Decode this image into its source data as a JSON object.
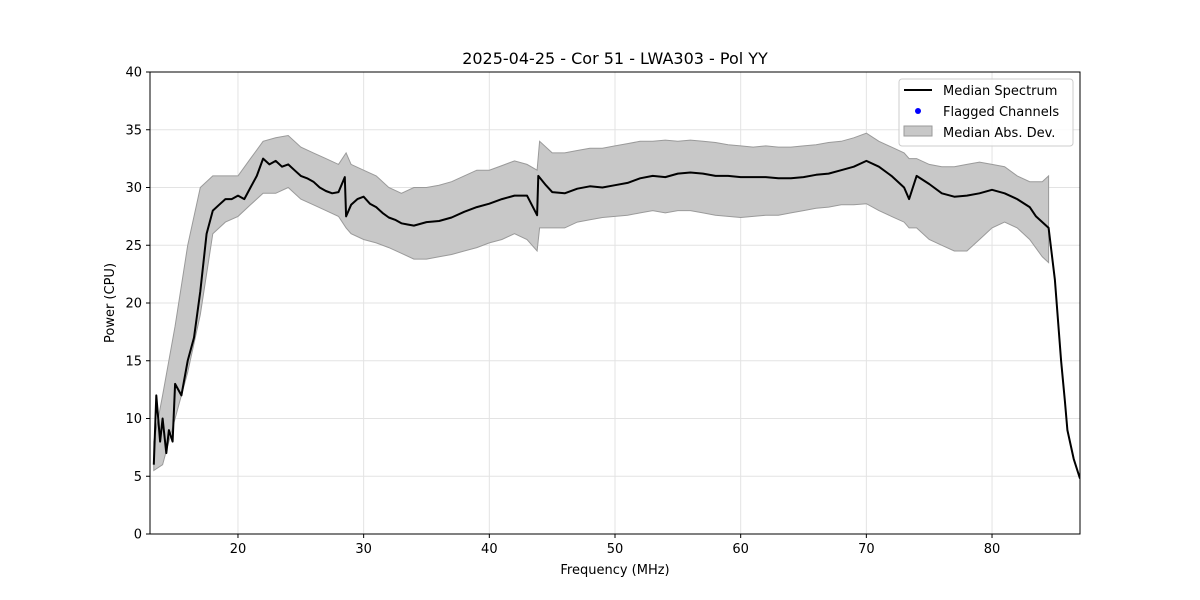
{
  "chart_data": {
    "type": "line",
    "title": "2025-04-25 - Cor 51 - LWA303 - Pol YY",
    "xlabel": "Frequency (MHz)",
    "ylabel": "Power (CPU)",
    "xlim": [
      13,
      87
    ],
    "ylim": [
      0,
      40
    ],
    "xticks": [
      20,
      30,
      40,
      50,
      60,
      70,
      80
    ],
    "yticks": [
      0,
      5,
      10,
      15,
      20,
      25,
      30,
      35,
      40
    ],
    "grid": true,
    "legend_position": "top-right",
    "legend": [
      "Median Spectrum",
      "Flagged Channels",
      "Median Abs. Dev."
    ],
    "colors": {
      "line": "#000000",
      "flagged": "#0000ff",
      "band_fill": "#c8c8c8",
      "band_edge": "#9a9a9a"
    },
    "series": [
      {
        "name": "Median Spectrum",
        "x": [
          13.3,
          13.5,
          13.8,
          14.0,
          14.3,
          14.5,
          14.8,
          15.0,
          15.5,
          16.0,
          16.5,
          17.0,
          17.5,
          18.0,
          18.5,
          19.0,
          19.5,
          20.0,
          20.5,
          21.0,
          21.5,
          22.0,
          22.5,
          23.0,
          23.5,
          24.0,
          24.5,
          25.0,
          25.5,
          26.0,
          26.5,
          27.0,
          27.5,
          28.0,
          28.5,
          28.6,
          29.0,
          29.5,
          30.0,
          30.5,
          31.0,
          31.5,
          32.0,
          32.5,
          33.0,
          33.5,
          34.0,
          35.0,
          36.0,
          37.0,
          38.0,
          39.0,
          40.0,
          41.0,
          42.0,
          43.0,
          43.8,
          43.9,
          44.5,
          45.0,
          46.0,
          47.0,
          48.0,
          49.0,
          50.0,
          51.0,
          52.0,
          53.0,
          54.0,
          55.0,
          56.0,
          57.0,
          58.0,
          59.0,
          60.0,
          61.0,
          62.0,
          63.0,
          64.0,
          65.0,
          66.0,
          67.0,
          68.0,
          69.0,
          70.0,
          71.0,
          72.0,
          73.0,
          73.4,
          74.0,
          75.0,
          76.0,
          77.0,
          78.0,
          79.0,
          80.0,
          81.0,
          82.0,
          83.0,
          83.5,
          84.0,
          84.5,
          85.0,
          85.5,
          85.8,
          86.0,
          86.5,
          87.0
        ],
        "values": [
          6.0,
          12.0,
          8.0,
          10.0,
          7.0,
          9.0,
          8.0,
          13.0,
          12.0,
          15.0,
          17.0,
          21.0,
          26.0,
          28.0,
          28.5,
          29.0,
          29.0,
          29.3,
          29.0,
          30.0,
          31.0,
          32.5,
          32.0,
          32.3,
          31.8,
          32.0,
          31.5,
          31.0,
          30.8,
          30.5,
          30.0,
          29.7,
          29.5,
          29.6,
          30.9,
          27.5,
          28.5,
          29.0,
          29.2,
          28.6,
          28.3,
          27.8,
          27.4,
          27.2,
          26.9,
          26.8,
          26.7,
          27.0,
          27.1,
          27.4,
          27.9,
          28.3,
          28.6,
          29.0,
          29.3,
          29.3,
          27.6,
          31.0,
          30.2,
          29.6,
          29.5,
          29.9,
          30.1,
          30.0,
          30.2,
          30.4,
          30.8,
          31.0,
          30.9,
          31.2,
          31.3,
          31.2,
          31.0,
          31.0,
          30.9,
          30.9,
          30.9,
          30.8,
          30.8,
          30.9,
          31.1,
          31.2,
          31.5,
          31.8,
          32.3,
          31.8,
          31.0,
          30.0,
          29.0,
          31.0,
          30.3,
          29.5,
          29.2,
          29.3,
          29.5,
          29.8,
          29.5,
          29.0,
          28.3,
          27.5,
          27.0,
          26.5,
          22.0,
          15.0,
          11.5,
          9.0,
          6.5,
          4.8
        ]
      },
      {
        "name": "Median Abs. Dev.",
        "x": [
          13.3,
          14.0,
          15.0,
          16.0,
          17.0,
          18.0,
          19.0,
          20.0,
          21.0,
          22.0,
          23.0,
          24.0,
          25.0,
          26.0,
          27.0,
          28.0,
          28.6,
          29.0,
          30.0,
          31.0,
          32.0,
          33.0,
          34.0,
          35.0,
          36.0,
          37.0,
          38.0,
          39.0,
          40.0,
          41.0,
          42.0,
          43.0,
          43.8,
          44.0,
          45.0,
          46.0,
          47.0,
          48.0,
          49.0,
          50.0,
          51.0,
          52.0,
          53.0,
          54.0,
          55.0,
          56.0,
          57.0,
          58.0,
          59.0,
          60.0,
          61.0,
          62.0,
          63.0,
          64.0,
          65.0,
          66.0,
          67.0,
          68.0,
          69.0,
          70.0,
          71.0,
          72.0,
          73.0,
          73.4,
          74.0,
          75.0,
          76.0,
          77.0,
          78.0,
          79.0,
          80.0,
          81.0,
          82.0,
          83.0,
          84.0,
          84.5
        ],
        "upper": [
          8.0,
          12.0,
          18.0,
          25.0,
          30.0,
          31.0,
          31.0,
          31.0,
          32.5,
          34.0,
          34.3,
          34.5,
          33.5,
          33.0,
          32.5,
          32.0,
          33.0,
          32.0,
          31.5,
          31.0,
          30.0,
          29.5,
          30.0,
          30.0,
          30.2,
          30.5,
          31.0,
          31.5,
          31.5,
          31.9,
          32.3,
          32.0,
          31.5,
          34.0,
          33.0,
          33.0,
          33.2,
          33.4,
          33.4,
          33.6,
          33.8,
          34.0,
          34.0,
          34.1,
          34.0,
          34.1,
          34.0,
          33.9,
          33.7,
          33.6,
          33.5,
          33.6,
          33.5,
          33.5,
          33.6,
          33.7,
          33.9,
          34.0,
          34.3,
          34.7,
          34.0,
          33.5,
          33.0,
          32.5,
          32.5,
          32.0,
          31.8,
          31.8,
          32.0,
          32.2,
          32.0,
          31.8,
          31.0,
          30.5,
          30.5,
          31.0
        ],
        "lower": [
          5.5,
          6.0,
          10.0,
          14.0,
          19.0,
          26.0,
          27.0,
          27.5,
          28.5,
          29.5,
          29.5,
          30.0,
          29.0,
          28.5,
          28.0,
          27.5,
          26.5,
          26.0,
          25.5,
          25.2,
          24.8,
          24.3,
          23.8,
          23.8,
          24.0,
          24.2,
          24.5,
          24.8,
          25.2,
          25.5,
          26.0,
          25.5,
          24.5,
          26.5,
          26.5,
          26.5,
          27.0,
          27.2,
          27.4,
          27.5,
          27.6,
          27.8,
          28.0,
          27.8,
          28.0,
          28.0,
          27.8,
          27.6,
          27.5,
          27.4,
          27.5,
          27.6,
          27.6,
          27.8,
          28.0,
          28.2,
          28.3,
          28.5,
          28.5,
          28.6,
          28.0,
          27.5,
          27.0,
          26.5,
          26.5,
          25.5,
          25.0,
          24.5,
          24.5,
          25.5,
          26.5,
          27.0,
          26.5,
          25.5,
          24.0,
          23.5
        ]
      },
      {
        "name": "Flagged Channels",
        "x": [],
        "values": []
      }
    ]
  }
}
